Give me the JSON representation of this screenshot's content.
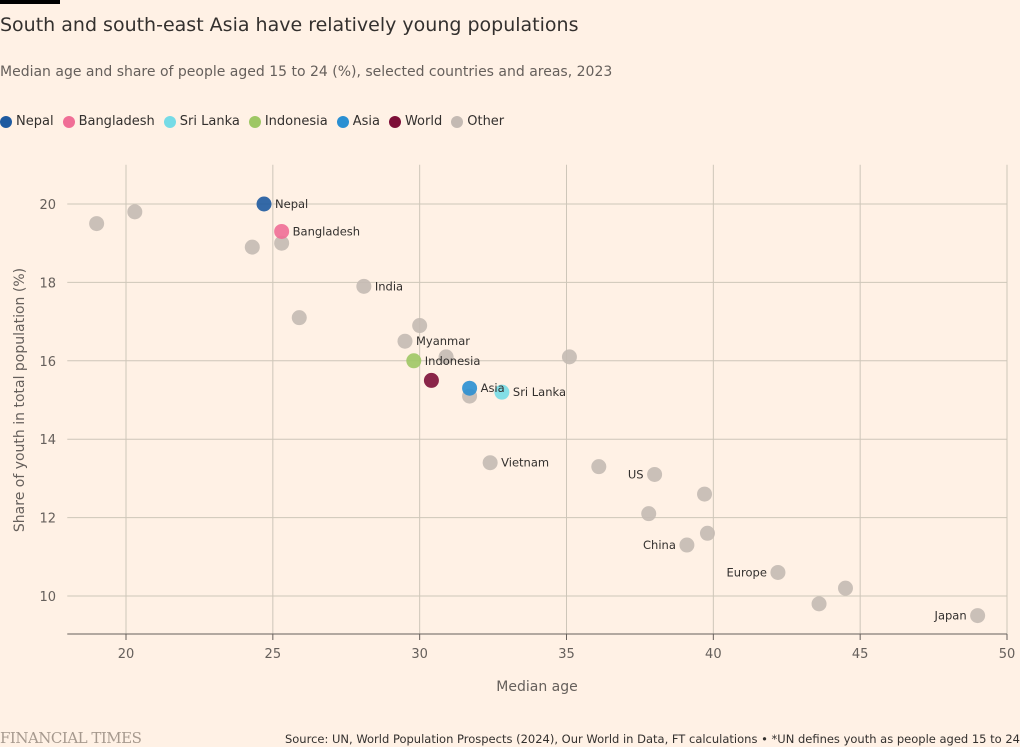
{
  "header": {
    "title": "South and south-east Asia have relatively young populations",
    "subtitle": "Median age and share of people aged 15 to 24 (%), selected countries and areas, 2023"
  },
  "legend": [
    {
      "label": "Nepal",
      "color": "#1e5aa0"
    },
    {
      "label": "Bangladesh",
      "color": "#f06e96"
    },
    {
      "label": "Sri Lanka",
      "color": "#76dbe6"
    },
    {
      "label": "Indonesia",
      "color": "#9ec764"
    },
    {
      "label": "Asia",
      "color": "#2a8fd2"
    },
    {
      "label": "World",
      "color": "#7d0e37"
    },
    {
      "label": "Other",
      "color": "#c4bab3"
    }
  ],
  "chart_data": {
    "type": "scatter",
    "title": "South and south-east Asia have relatively young populations",
    "subtitle": "Median age and share of people aged 15 to 24 (%), selected countries and areas, 2023",
    "xlabel": "Median age",
    "ylabel": "Share of youth in total population (%)",
    "xlim": [
      18,
      50
    ],
    "ylim": [
      9,
      21
    ],
    "xticks": [
      20,
      25,
      30,
      35,
      40,
      45,
      50
    ],
    "yticks": [
      10,
      12,
      14,
      16,
      18,
      20
    ],
    "grid": true,
    "legend_position": "top-left",
    "points": [
      {
        "x": 19.0,
        "y": 19.5,
        "group": "Other",
        "label": ""
      },
      {
        "x": 20.3,
        "y": 19.8,
        "group": "Other",
        "label": ""
      },
      {
        "x": 24.3,
        "y": 18.9,
        "group": "Other",
        "label": ""
      },
      {
        "x": 25.3,
        "y": 19.0,
        "group": "Other",
        "label": ""
      },
      {
        "x": 28.1,
        "y": 17.9,
        "group": "Other",
        "label": "India",
        "anchor": "right"
      },
      {
        "x": 25.9,
        "y": 17.1,
        "group": "Other",
        "label": ""
      },
      {
        "x": 30.0,
        "y": 16.9,
        "group": "Other",
        "label": ""
      },
      {
        "x": 29.5,
        "y": 16.5,
        "group": "Other",
        "label": "Myanmar",
        "anchor": "right"
      },
      {
        "x": 30.9,
        "y": 16.1,
        "group": "Other",
        "label": ""
      },
      {
        "x": 35.1,
        "y": 16.1,
        "group": "Other",
        "label": ""
      },
      {
        "x": 31.7,
        "y": 15.1,
        "group": "Other",
        "label": ""
      },
      {
        "x": 32.4,
        "y": 13.4,
        "group": "Other",
        "label": "Vietnam",
        "anchor": "right"
      },
      {
        "x": 36.1,
        "y": 13.3,
        "group": "Other",
        "label": ""
      },
      {
        "x": 38.0,
        "y": 13.1,
        "group": "Other",
        "label": "US",
        "anchor": "left"
      },
      {
        "x": 39.7,
        "y": 12.6,
        "group": "Other",
        "label": ""
      },
      {
        "x": 37.8,
        "y": 12.1,
        "group": "Other",
        "label": ""
      },
      {
        "x": 39.8,
        "y": 11.6,
        "group": "Other",
        "label": ""
      },
      {
        "x": 39.1,
        "y": 11.3,
        "group": "Other",
        "label": "China",
        "anchor": "left"
      },
      {
        "x": 42.2,
        "y": 10.6,
        "group": "Other",
        "label": "Europe",
        "anchor": "left"
      },
      {
        "x": 44.5,
        "y": 10.2,
        "group": "Other",
        "label": ""
      },
      {
        "x": 43.6,
        "y": 9.8,
        "group": "Other",
        "label": ""
      },
      {
        "x": 49.0,
        "y": 9.5,
        "group": "Other",
        "label": "Japan",
        "anchor": "left"
      },
      {
        "x": 24.7,
        "y": 20.0,
        "group": "Nepal",
        "label": "Nepal",
        "anchor": "right"
      },
      {
        "x": 25.3,
        "y": 19.3,
        "group": "Bangladesh",
        "label": "Bangladesh",
        "anchor": "right"
      },
      {
        "x": 29.8,
        "y": 16.0,
        "group": "Indonesia",
        "label": "Indonesia",
        "anchor": "right"
      },
      {
        "x": 30.4,
        "y": 15.5,
        "group": "World",
        "label": "",
        "anchor": "right"
      },
      {
        "x": 32.8,
        "y": 15.2,
        "group": "Sri Lanka",
        "label": "Sri Lanka",
        "anchor": "right"
      },
      {
        "x": 31.7,
        "y": 15.3,
        "group": "Asia",
        "label": "Asia",
        "anchor": "right"
      }
    ]
  },
  "footer": {
    "logo": "FINANCIAL TIMES",
    "source": "Source: UN, World Population Prospects (2024), Our World in Data, FT calculations • *UN defines youth as people aged 15 to 24"
  }
}
